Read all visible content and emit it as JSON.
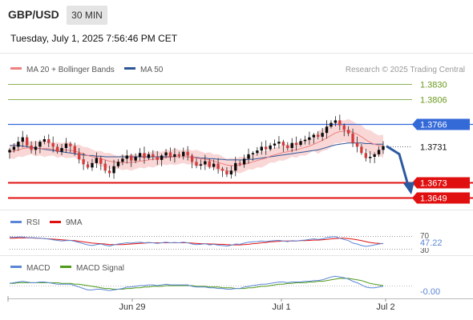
{
  "header": {
    "symbol": "GBP/USD",
    "timeframe": "30 MIN",
    "datetime": "Tuesday, July 1, 2025 7:56:46 PM CET"
  },
  "legend": {
    "ma20": "MA 20 + Bollinger Bands",
    "ma50": "MA 50",
    "credit": "Research © 2025 Trading Central"
  },
  "colors": {
    "ma20": "#f08080",
    "ma50": "#2e5597",
    "band_fill": "#f7c9c9",
    "candle_up": "#0a0a0a",
    "candle_down": "#d43b3b",
    "resistance": "#6a9a1f",
    "pivot": "#3469d8",
    "support": "#e01010",
    "arrow": "#2c5aa0",
    "rsi": "#5b86d6",
    "rsi_ma": "#e01010",
    "macd": "#5b86d6",
    "macd_signal": "#4f9a1a"
  },
  "chart_data": [
    {
      "type": "candlestick",
      "title": "GBP/USD 30 MIN",
      "y_range": [
        1.363,
        1.384
      ],
      "levels": [
        {
          "value": 1.383,
          "label": "1.3830",
          "kind": "resistance"
        },
        {
          "value": 1.3806,
          "label": "1.3806",
          "kind": "resistance"
        },
        {
          "value": 1.3766,
          "label": "1.3766",
          "kind": "pivot"
        },
        {
          "value": 1.3731,
          "label": "1.3731",
          "kind": "last"
        },
        {
          "value": 1.3673,
          "label": "1.3673",
          "kind": "support"
        },
        {
          "value": 1.3649,
          "label": "1.3649",
          "kind": "support"
        }
      ],
      "x_tick_labels": [
        "Jun 29",
        "Jul 1",
        "Jul 2"
      ],
      "close": [
        1.3725,
        1.373,
        1.3738,
        1.3745,
        1.3732,
        1.3725,
        1.373,
        1.3738,
        1.3742,
        1.3736,
        1.373,
        1.3722,
        1.3728,
        1.3735,
        1.3731,
        1.372,
        1.371,
        1.3702,
        1.3697,
        1.3704,
        1.3712,
        1.3703,
        1.3692,
        1.3688,
        1.3699,
        1.3706,
        1.3711,
        1.3716,
        1.3708,
        1.3714,
        1.372,
        1.3712,
        1.3718,
        1.3714,
        1.3709,
        1.3716,
        1.3721,
        1.3714,
        1.3718,
        1.3715,
        1.3722,
        1.3716,
        1.3706,
        1.37,
        1.3702,
        1.3707,
        1.3698,
        1.3703,
        1.3695,
        1.3692,
        1.3686,
        1.3692,
        1.3704,
        1.3702,
        1.3711,
        1.3718,
        1.372,
        1.3724,
        1.373,
        1.3726,
        1.3732,
        1.3735,
        1.3738,
        1.3732,
        1.3728,
        1.3736,
        1.3733,
        1.3739,
        1.3741,
        1.3745,
        1.3749,
        1.3746,
        1.3752,
        1.3762,
        1.3768,
        1.3772,
        1.3764,
        1.3757,
        1.3751,
        1.3736,
        1.373,
        1.372,
        1.3712,
        1.3714,
        1.3718,
        1.3725,
        1.3731
      ],
      "ma20": [
        1.3722,
        1.3723,
        1.3725,
        1.3727,
        1.3728,
        1.3728,
        1.3727,
        1.3727,
        1.3727,
        1.3727,
        1.3726,
        1.3725,
        1.3725,
        1.3725,
        1.3724,
        1.3723,
        1.3721,
        1.3719,
        1.3716,
        1.3714,
        1.3713,
        1.3711,
        1.3709,
        1.3707,
        1.3706,
        1.3705,
        1.3705,
        1.3705,
        1.3705,
        1.3706,
        1.3707,
        1.3708,
        1.3709,
        1.371,
        1.3711,
        1.3712,
        1.3713,
        1.3713,
        1.3714,
        1.3714,
        1.3714,
        1.3714,
        1.3713,
        1.3712,
        1.3711,
        1.371,
        1.3709,
        1.3707,
        1.3705,
        1.3703,
        1.3701,
        1.37,
        1.37,
        1.3701,
        1.3702,
        1.3704,
        1.3706,
        1.3708,
        1.371,
        1.3712,
        1.3715,
        1.3717,
        1.3719,
        1.3721,
        1.3722,
        1.3724,
        1.3725,
        1.3727,
        1.3729,
        1.3731,
        1.3734,
        1.3737,
        1.374,
        1.3744,
        1.3748,
        1.3752,
        1.3754,
        1.3755,
        1.3755,
        1.3753,
        1.375,
        1.3746,
        1.3741,
        1.3737,
        1.3734,
        1.3732,
        1.3731
      ],
      "ma50": [
        1.3732,
        1.3732,
        1.3732,
        1.3731,
        1.373,
        1.3729,
        1.3728,
        1.3727,
        1.3726,
        1.3725,
        1.3724,
        1.3723,
        1.3722,
        1.3721,
        1.372,
        1.3719,
        1.3718,
        1.3717,
        1.3716,
        1.3716,
        1.3715,
        1.3715,
        1.3714,
        1.3714,
        1.3714,
        1.3714,
        1.3714,
        1.3714,
        1.3714,
        1.3714,
        1.3714,
        1.3714,
        1.3714,
        1.3714,
        1.3714,
        1.3714,
        1.3714,
        1.3714,
        1.3714,
        1.3714,
        1.3714,
        1.3714,
        1.3713,
        1.3713,
        1.3712,
        1.3712,
        1.3711,
        1.3711,
        1.371,
        1.371,
        1.3709,
        1.3709,
        1.3709,
        1.3709,
        1.3709,
        1.371,
        1.371,
        1.3711,
        1.3712,
        1.3713,
        1.3714,
        1.3715,
        1.3716,
        1.3717,
        1.3718,
        1.3719,
        1.372,
        1.3721,
        1.3722,
        1.3723,
        1.3724,
        1.3725,
        1.3727,
        1.3729,
        1.3731,
        1.3733,
        1.3734,
        1.3735,
        1.3736,
        1.3736,
        1.3736,
        1.3736,
        1.3735,
        1.3735,
        1.3734,
        1.3734,
        1.3734
      ]
    },
    {
      "type": "line",
      "title": "RSI",
      "series": [
        {
          "name": "RSI",
          "values": [
            68,
            67,
            68,
            68,
            66,
            66,
            65,
            64,
            63,
            61,
            59,
            57,
            55,
            56,
            57,
            54,
            50,
            46,
            42,
            40,
            43,
            45,
            41,
            38,
            42,
            45,
            47,
            49,
            48,
            50,
            51,
            49,
            50,
            49,
            47,
            49,
            51,
            49,
            50,
            49,
            51,
            49,
            45,
            43,
            44,
            46,
            42,
            44,
            41,
            40,
            38,
            41,
            45,
            44,
            48,
            51,
            52,
            53,
            55,
            53,
            55,
            56,
            57,
            55,
            53,
            56,
            55,
            57,
            58,
            60,
            62,
            60,
            62,
            66,
            68,
            69,
            64,
            60,
            56,
            48,
            45,
            40,
            37,
            39,
            42,
            45,
            47
          ]
        },
        {
          "name": "9MA",
          "values": [
            64,
            64,
            65,
            65,
            65,
            65,
            64,
            64,
            63,
            62,
            61,
            60,
            59,
            58,
            57,
            56,
            54,
            52,
            50,
            48,
            47,
            46,
            45,
            43,
            43,
            43,
            43,
            44,
            45,
            46,
            47,
            48,
            49,
            49,
            49,
            49,
            49,
            49,
            49,
            49,
            49,
            49,
            48,
            47,
            46,
            46,
            45,
            45,
            44,
            44,
            43,
            42,
            42,
            42,
            43,
            44,
            46,
            47,
            49,
            50,
            52,
            53,
            54,
            55,
            55,
            55,
            55,
            56,
            56,
            57,
            58,
            58,
            59,
            60,
            62,
            63,
            64,
            64,
            63,
            61,
            59,
            56,
            53,
            50,
            48,
            47,
            46
          ]
        }
      ],
      "y_ticks": [
        70,
        30
      ],
      "last_value": "47.22"
    },
    {
      "type": "line",
      "title": "MACD",
      "series": [
        {
          "name": "MACD",
          "values": [
            0.0003,
            0.0004,
            0.0005,
            0.0006,
            0.0005,
            0.0004,
            0.0004,
            0.0005,
            0.0005,
            0.0004,
            0.0003,
            0.0002,
            0.0002,
            0.0002,
            0.0002,
            0.0,
            -0.0002,
            -0.0004,
            -0.0006,
            -0.0006,
            -0.0005,
            -0.0005,
            -0.0006,
            -0.0007,
            -0.0006,
            -0.0005,
            -0.0004,
            -0.0002,
            -0.0002,
            -0.0001,
            0.0,
            0.0,
            0.0001,
            0.0001,
            0.0,
            0.0001,
            0.0002,
            0.0001,
            0.0001,
            0.0001,
            0.0001,
            0.0001,
            -0.0001,
            -0.0002,
            -0.0002,
            -0.0002,
            -0.0003,
            -0.0003,
            -0.0004,
            -0.0004,
            -0.0005,
            -0.0005,
            -0.0004,
            -0.0004,
            -0.0002,
            -0.0001,
            0.0,
            0.0001,
            0.0002,
            0.0002,
            0.0003,
            0.0004,
            0.0005,
            0.0005,
            0.0004,
            0.0005,
            0.0005,
            0.0005,
            0.0006,
            0.0006,
            0.0007,
            0.0007,
            0.0008,
            0.001,
            0.0012,
            0.0013,
            0.0012,
            0.0011,
            0.0009,
            0.0006,
            0.0004,
            0.0001,
            -0.0002,
            -0.0003,
            -0.0003,
            -0.0002,
            -0.0001
          ]
        },
        {
          "name": "MACD Signal",
          "values": [
            0.0003,
            0.0003,
            0.0004,
            0.0004,
            0.0004,
            0.0004,
            0.0004,
            0.0004,
            0.0004,
            0.0004,
            0.0004,
            0.0004,
            0.0003,
            0.0003,
            0.0003,
            0.0002,
            0.0002,
            0.0001,
            0.0,
            -0.0001,
            -0.0002,
            -0.0003,
            -0.0004,
            -0.0004,
            -0.0005,
            -0.0005,
            -0.0005,
            -0.0004,
            -0.0004,
            -0.0003,
            -0.0003,
            -0.0002,
            -0.0002,
            -0.0001,
            -0.0001,
            -0.0001,
            0.0,
            0.0,
            0.0,
            0.0,
            0.0,
            0.0,
            0.0,
            -0.0001,
            -0.0001,
            -0.0001,
            -0.0002,
            -0.0002,
            -0.0002,
            -0.0003,
            -0.0003,
            -0.0003,
            -0.0004,
            -0.0004,
            -0.0004,
            -0.0003,
            -0.0003,
            -0.0002,
            -0.0001,
            -0.0001,
            0.0,
            0.0001,
            0.0002,
            0.0002,
            0.0003,
            0.0003,
            0.0004,
            0.0004,
            0.0004,
            0.0005,
            0.0005,
            0.0006,
            0.0006,
            0.0007,
            0.0008,
            0.0009,
            0.001,
            0.001,
            0.001,
            0.0009,
            0.0008,
            0.0007,
            0.0005,
            0.0003,
            0.0002,
            0.0001,
            0.0
          ]
        }
      ],
      "last_value": "-0.00"
    }
  ],
  "forecast_arrow": {
    "from": 1.3731,
    "to": 1.3649,
    "direction": "down"
  },
  "x_axis": {
    "ticks": [
      "Jun 29",
      "Jul 1",
      "Jul 2"
    ]
  }
}
